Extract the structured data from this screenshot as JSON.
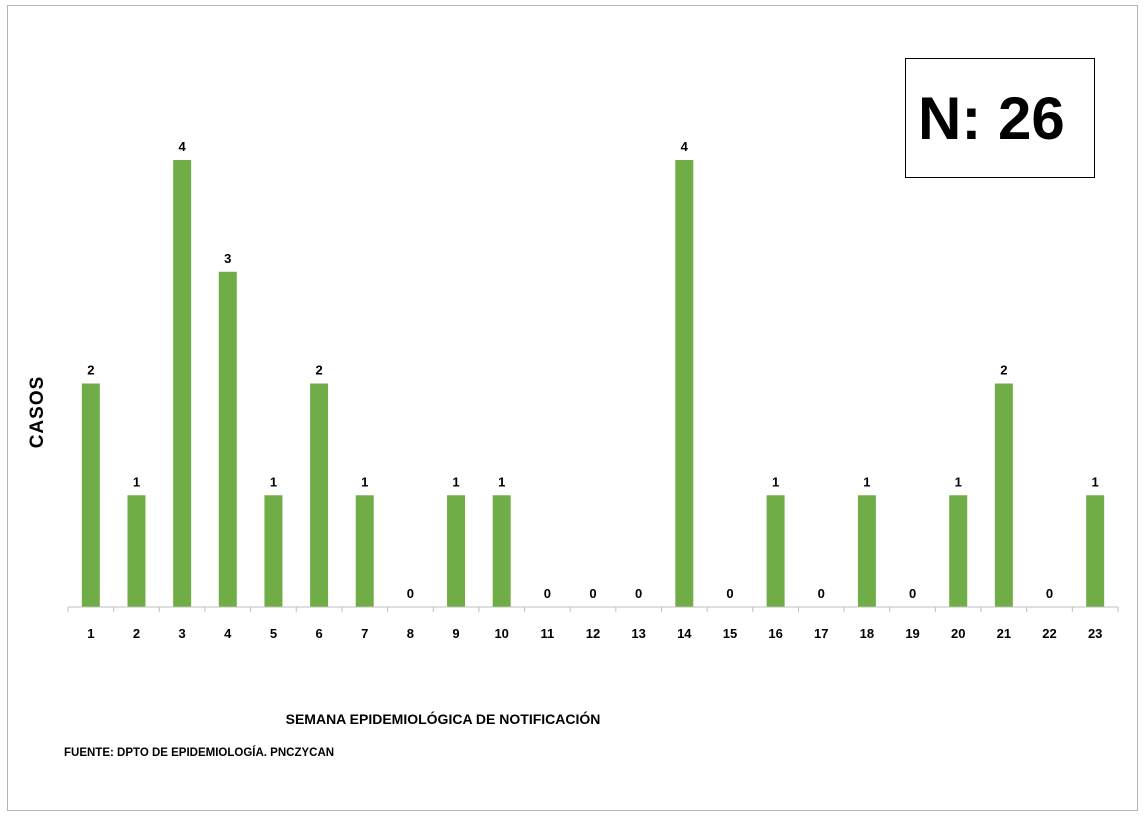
{
  "chart_data": {
    "type": "bar",
    "categories": [
      "1",
      "2",
      "3",
      "4",
      "5",
      "6",
      "7",
      "8",
      "9",
      "10",
      "11",
      "12",
      "13",
      "14",
      "15",
      "16",
      "17",
      "18",
      "19",
      "20",
      "21",
      "22",
      "23"
    ],
    "values": [
      2,
      1,
      4,
      3,
      1,
      2,
      1,
      0,
      1,
      1,
      0,
      0,
      0,
      4,
      0,
      1,
      0,
      1,
      0,
      1,
      2,
      0,
      1
    ],
    "ylabel": "CASOS",
    "xlabel": "SEMANA EPIDEMIOLÓGICA  DE NOTIFICACIÓN",
    "ylim": [
      0,
      4
    ],
    "data_labels": true,
    "grid": false,
    "bar_color": "#70ad47",
    "annotation": {
      "label": "N:",
      "value": "26"
    },
    "source": "FUENTE: DPTO DE EPIDEMIOLOGÍA. PNCZYCAN"
  }
}
